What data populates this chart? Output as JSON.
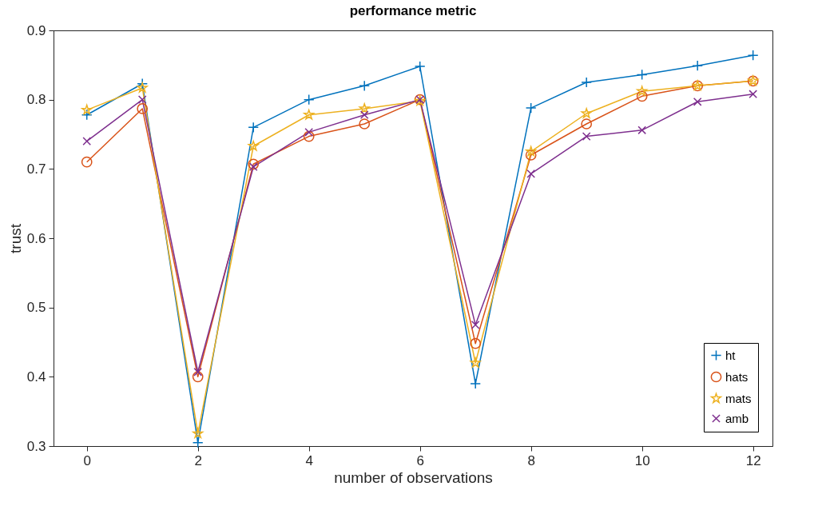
{
  "chart_data": {
    "type": "line",
    "title": "performance metric",
    "xlabel": "number of observations",
    "ylabel": "trust",
    "x": [
      0,
      1,
      2,
      3,
      4,
      5,
      6,
      7,
      8,
      9,
      10,
      11,
      12
    ],
    "series": [
      {
        "name": "ht",
        "color": "#0072bd",
        "marker": "cross",
        "values": [
          0.778,
          0.823,
          0.305,
          0.76,
          0.8,
          0.82,
          0.848,
          0.39,
          0.788,
          0.825,
          0.836,
          0.849,
          0.864
        ]
      },
      {
        "name": "hats",
        "color": "#d95319",
        "marker": "circle",
        "values": [
          0.71,
          0.787,
          0.4,
          0.707,
          0.747,
          0.765,
          0.8,
          0.448,
          0.72,
          0.765,
          0.805,
          0.82,
          0.827
        ]
      },
      {
        "name": "mats",
        "color": "#edb120",
        "marker": "star",
        "values": [
          0.785,
          0.817,
          0.318,
          0.733,
          0.778,
          0.787,
          0.798,
          0.42,
          0.725,
          0.78,
          0.812,
          0.82,
          0.827
        ]
      },
      {
        "name": "amb",
        "color": "#7e2f8e",
        "marker": "x",
        "values": [
          0.74,
          0.8,
          0.407,
          0.703,
          0.753,
          0.778,
          0.8,
          0.475,
          0.693,
          0.747,
          0.756,
          0.797,
          0.808
        ]
      }
    ],
    "xlim": [
      -0.6,
      12.35
    ],
    "xticks": [
      0,
      2,
      4,
      6,
      8,
      10,
      12
    ],
    "ylim": [
      0.3,
      0.9
    ],
    "yticks": [
      0.3,
      0.4,
      0.5,
      0.6,
      0.7,
      0.8,
      0.9
    ],
    "legend": "bottom right",
    "line_style": "solid"
  }
}
